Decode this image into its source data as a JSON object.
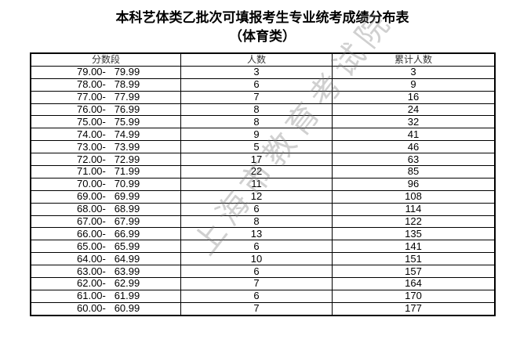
{
  "title": "本科艺体类乙批次可填报考生专业统考成绩分布表",
  "subtitle": "（体育类）",
  "watermark": "上海市教育考试院",
  "table": {
    "headers": [
      "分数段",
      "人数",
      "累计人数"
    ],
    "rows": [
      [
        "79.00-   79.99",
        "3",
        "3"
      ],
      [
        "78.00-   78.99",
        "6",
        "9"
      ],
      [
        "77.00-   77.99",
        "7",
        "16"
      ],
      [
        "76.00-   76.99",
        "8",
        "24"
      ],
      [
        "75.00-   75.99",
        "8",
        "32"
      ],
      [
        "74.00-   74.99",
        "9",
        "41"
      ],
      [
        "73.00-   73.99",
        "5",
        "46"
      ],
      [
        "72.00-   72.99",
        "17",
        "63"
      ],
      [
        "71.00-   71.99",
        "22",
        "85"
      ],
      [
        "70.00-   70.99",
        "11",
        "96"
      ],
      [
        "69.00-   69.99",
        "12",
        "108"
      ],
      [
        "68.00-   68.99",
        "6",
        "114"
      ],
      [
        "67.00-   67.99",
        "8",
        "122"
      ],
      [
        "66.00-   66.99",
        "13",
        "135"
      ],
      [
        "65.00-   65.99",
        "6",
        "141"
      ],
      [
        "64.00-   64.99",
        "10",
        "151"
      ],
      [
        "63.00-   63.99",
        "6",
        "157"
      ],
      [
        "62.00-   62.99",
        "7",
        "164"
      ],
      [
        "61.00-   61.99",
        "6",
        "170"
      ],
      [
        "60.00-   60.99",
        "7",
        "177"
      ]
    ]
  }
}
